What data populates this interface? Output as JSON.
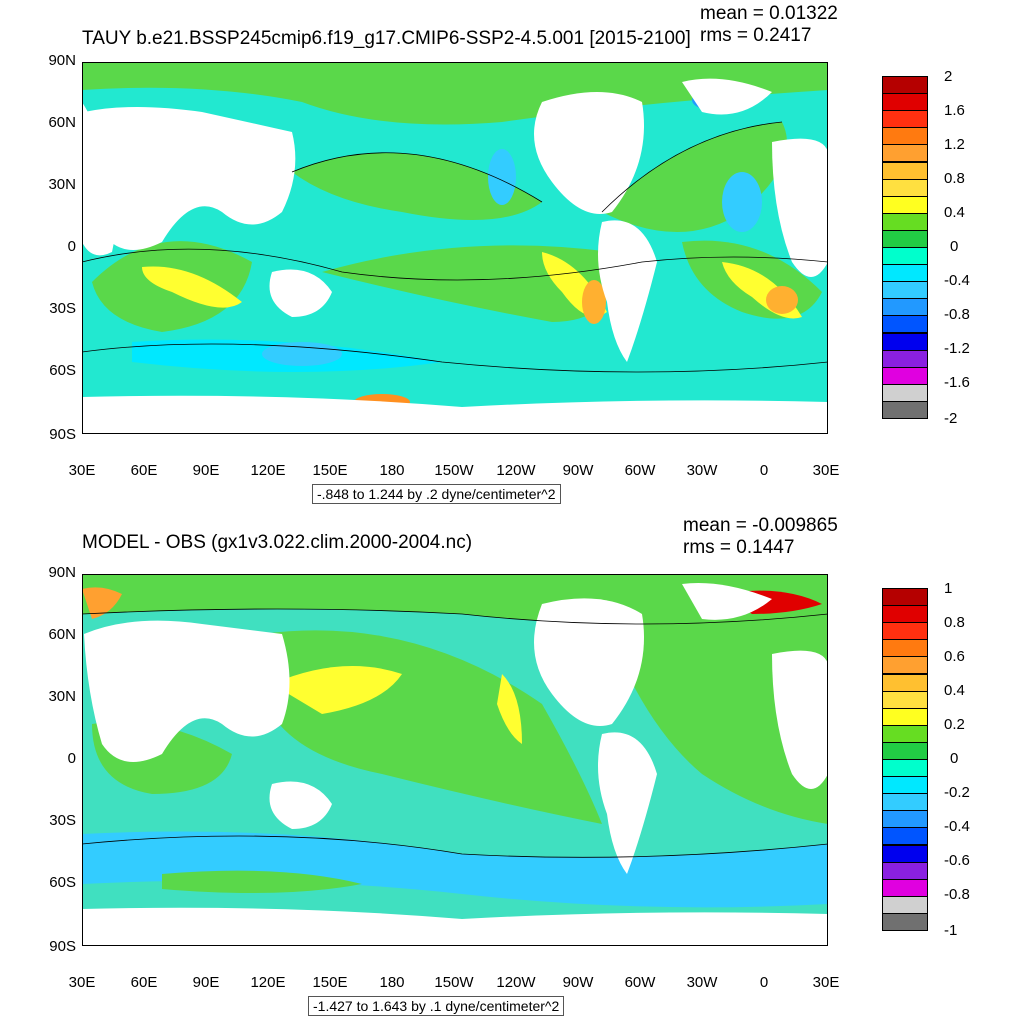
{
  "chart_data": [
    {
      "type": "heatmap",
      "panel": "top",
      "title": "TAUY b.e21.BSSP245cmip6.f19_g17.CMIP6-SSP2-4.5.001 [2015-2100]",
      "mean_label": "mean = 0.01322",
      "rms_label": "rms = 0.2417",
      "range_note": "-.848 to 1.244 by .2 dyne/centimeter^2",
      "y_ticks": [
        "90N",
        "60N",
        "30N",
        "0",
        "30S",
        "60S",
        "90S"
      ],
      "x_ticks": [
        "30E",
        "60E",
        "90E",
        "120E",
        "150E",
        "180",
        "150W",
        "120W",
        "90W",
        "60W",
        "30W",
        "0",
        "30E"
      ],
      "colorbar": {
        "labels": [
          "2",
          "1.6",
          "1.2",
          "0.8",
          "0.4",
          "0",
          "-0.4",
          "-0.8",
          "-1.2",
          "-1.6",
          "-2"
        ],
        "colors": [
          "#b50000",
          "#e00000",
          "#ff3010",
          "#ff7a10",
          "#ffa030",
          "#ffc030",
          "#ffe040",
          "#ffff20",
          "#66dd22",
          "#22cc44",
          "#00ffcc",
          "#00e8ff",
          "#33ccff",
          "#2299ff",
          "#0055ff",
          "#0000ee",
          "#8a20e0",
          "#e000e0",
          "#d0d0d0",
          "#707070"
        ]
      }
    },
    {
      "type": "heatmap",
      "panel": "bottom",
      "title": "MODEL - OBS (gx1v3.022.clim.2000-2004.nc)",
      "mean_label": "mean = -0.009865",
      "rms_label": "rms = 0.1447",
      "range_note": "-1.427 to 1.643 by .1 dyne/centimeter^2",
      "y_ticks": [
        "90N",
        "60N",
        "30N",
        "0",
        "30S",
        "60S",
        "90S"
      ],
      "x_ticks": [
        "30E",
        "60E",
        "90E",
        "120E",
        "150E",
        "180",
        "150W",
        "120W",
        "90W",
        "60W",
        "30W",
        "0",
        "30E"
      ],
      "colorbar": {
        "labels": [
          "1",
          "0.8",
          "0.6",
          "0.4",
          "0.2",
          "0",
          "-0.2",
          "-0.4",
          "-0.6",
          "-0.8",
          "-1"
        ],
        "colors": [
          "#b50000",
          "#e00000",
          "#ff3010",
          "#ff7a10",
          "#ffa030",
          "#ffc030",
          "#ffe040",
          "#ffff20",
          "#66dd22",
          "#22cc44",
          "#00ffcc",
          "#00e8ff",
          "#33ccff",
          "#2299ff",
          "#0055ff",
          "#0000ee",
          "#8a20e0",
          "#e000e0",
          "#d0d0d0",
          "#707070"
        ]
      }
    }
  ],
  "land_color": "#ffffff",
  "ocean_base_top": "#22e8d0",
  "ocean_base_bottom": "#40e0c0"
}
